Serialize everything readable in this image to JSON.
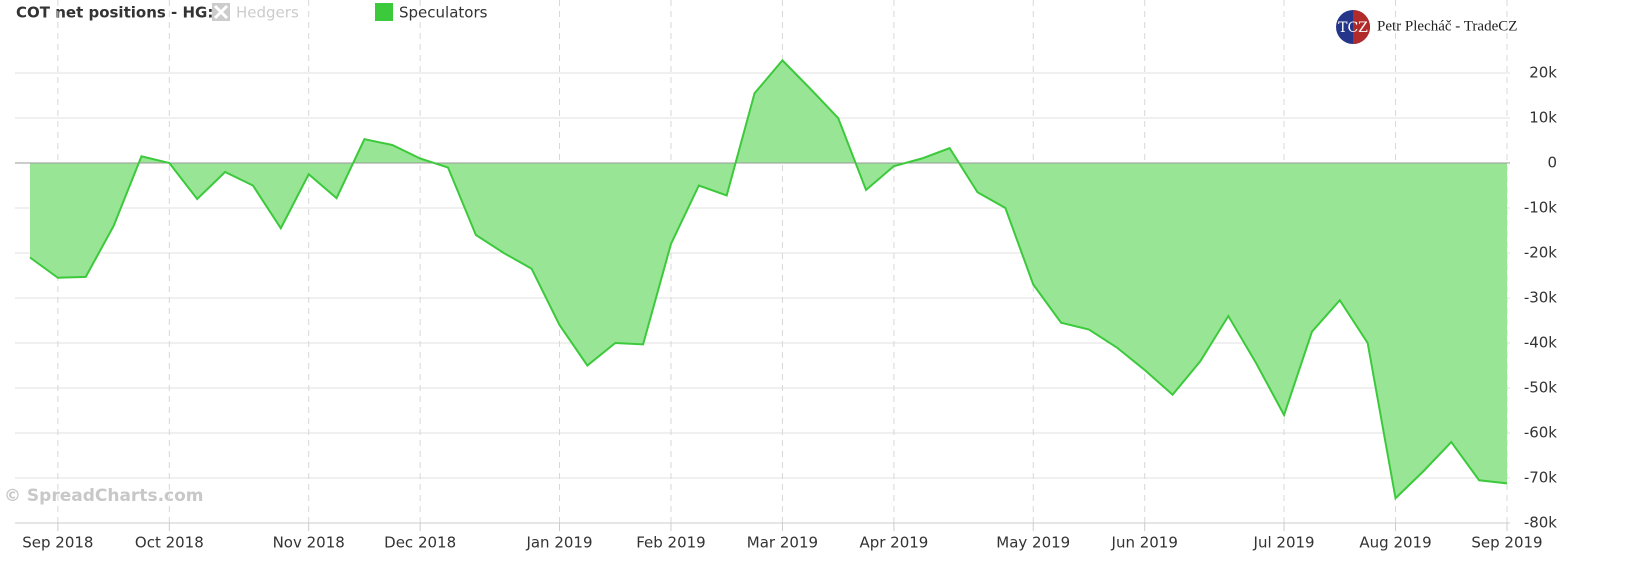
{
  "chart_data": {
    "type": "area",
    "title": "COT net positions - HG:",
    "credit": "© SpreadCharts.com",
    "author": "Petr Plecháč - TradeCZ",
    "logo": "TCZ",
    "categories": [
      null,
      "Sep 2018",
      null,
      null,
      null,
      "Oct 2018",
      null,
      null,
      null,
      null,
      "Nov 2018",
      null,
      null,
      null,
      "Dec 2018",
      null,
      null,
      null,
      null,
      "Jan 2019",
      null,
      null,
      null,
      "Feb 2019",
      null,
      null,
      null,
      "Mar 2019",
      null,
      null,
      null,
      "Apr 2019",
      null,
      null,
      null,
      null,
      "May 2019",
      null,
      null,
      null,
      "Jun 2019",
      null,
      null,
      null,
      null,
      "Jul 2019",
      null,
      null,
      null,
      "Aug 2019",
      null,
      null,
      null,
      "Sep 2019"
    ],
    "hidden_series": [
      {
        "name": "Hedgers",
        "color": "#cccccc"
      }
    ],
    "series": [
      {
        "name": "Speculators",
        "color": "#3cc93c",
        "fill": "#98e695",
        "values": [
          -21000,
          -25500,
          -25300,
          -14000,
          1500,
          0,
          -8000,
          -2000,
          -5000,
          -14500,
          -2500,
          -7800,
          5300,
          4000,
          1000,
          -1000,
          -16000,
          -20000,
          -23500,
          -36000,
          -45000,
          -40000,
          -40300,
          -18000,
          -5000,
          -7200,
          15500,
          22800,
          16500,
          10000,
          -6000,
          -700,
          1000,
          3300,
          -6500,
          -10000,
          -27000,
          -35500,
          -37000,
          -41000,
          -46000,
          -51500,
          -44000,
          -34000,
          -44500,
          -56000,
          -37500,
          -30500,
          -40000,
          -74500,
          -68500,
          -62000,
          -70500,
          -71200
        ]
      }
    ],
    "ylim": [
      -80000,
      30000
    ],
    "yticks": [
      {
        "value": -80000,
        "label": "-80k"
      },
      {
        "value": -70000,
        "label": "-70k"
      },
      {
        "value": -60000,
        "label": "-60k"
      },
      {
        "value": -50000,
        "label": "-50k"
      },
      {
        "value": -40000,
        "label": "-40k"
      },
      {
        "value": -30000,
        "label": "-30k"
      },
      {
        "value": -20000,
        "label": "-20k"
      },
      {
        "value": -10000,
        "label": "-10k"
      },
      0,
      {
        "value": 10000,
        "label": "10k"
      },
      {
        "value": 20000,
        "label": "20k"
      }
    ],
    "grid": true
  }
}
